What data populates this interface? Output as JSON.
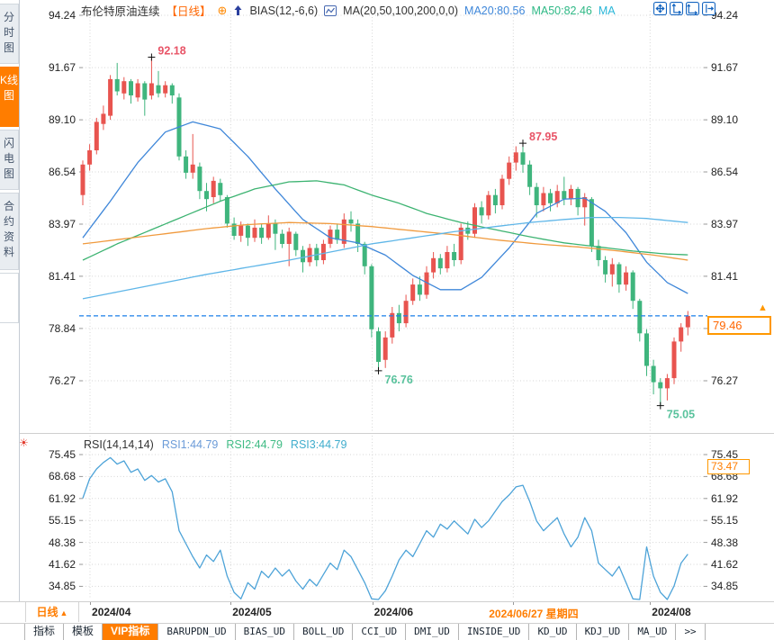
{
  "header": {
    "title": "布伦特原油连续",
    "legend_items": [
      {
        "type": "text",
        "text": "布伦特原油连续",
        "color": "#333333"
      },
      {
        "type": "text",
        "text": "【日线】",
        "color": "#ff6600"
      },
      {
        "type": "icon",
        "name": "plus-circle-icon",
        "glyph": "⊕",
        "color": "#ff8800"
      },
      {
        "type": "icon",
        "name": "signal-arrow-icon",
        "glyph": "",
        "color": "#2a3f9e"
      },
      {
        "type": "text",
        "text": "BIAS(12,-6,6)",
        "color": "#333333"
      },
      {
        "type": "icon",
        "name": "ma-chart-icon",
        "glyph": "",
        "color": "#4668b0"
      },
      {
        "type": "text",
        "text": "MA(20,50,100,200,0,0)",
        "color": "#333333"
      },
      {
        "type": "text",
        "text": "MA20:80.56",
        "color": "#3f87d9"
      },
      {
        "type": "text",
        "text": "MA50:82.46",
        "color": "#2eb885"
      },
      {
        "type": "text",
        "text": "MA",
        "color": "#29b6d8"
      }
    ],
    "corner_icons": [
      "pan-icon",
      "scale-y-axis-icon",
      "scale-x-axis-icon",
      "shift-right-icon"
    ]
  },
  "sidebar": {
    "tabs": [
      {
        "label": "分时图",
        "active": false
      },
      {
        "label": "K线图",
        "active": true
      },
      {
        "label": "闪电图",
        "active": false
      },
      {
        "label": "合约资料",
        "active": false
      }
    ]
  },
  "chart_data": {
    "type": "candlestick",
    "colors": {
      "up": "#e8544f",
      "down": "#3fb57d",
      "grid": "#d6d6d6",
      "axis_text": "#222222",
      "rsi_line": "#4da3d8",
      "price_line": "#1a7fe8",
      "accent_orange": "#ff7d00"
    },
    "main": {
      "yticks": [
        "94.24",
        "91.67",
        "89.10",
        "86.54",
        "83.97",
        "81.41",
        "78.84",
        "76.27"
      ],
      "xticks": [
        {
          "i": 1.05,
          "label": "2024/04"
        },
        {
          "i": 21.5,
          "label": "2024/05"
        },
        {
          "i": 42.1,
          "label": "2024/06"
        },
        {
          "i": 62.6,
          "label": "2024/06/27 星期四",
          "highlight": true,
          "dx": -27
        },
        {
          "i": 82.5,
          "label": "2024/08"
        }
      ],
      "candles": [
        [
          85.4,
          87.1,
          84.9,
          86.9
        ],
        [
          86.9,
          87.9,
          86.6,
          87.6
        ],
        [
          87.6,
          89.2,
          87.4,
          89.0
        ],
        [
          88.9,
          89.8,
          88.6,
          89.4
        ],
        [
          89.3,
          91.3,
          89.1,
          91.1
        ],
        [
          91.1,
          91.9,
          90.3,
          90.5
        ],
        [
          90.4,
          91.2,
          90.1,
          91.0
        ],
        [
          91.0,
          91.1,
          89.9,
          90.3
        ],
        [
          90.2,
          91.1,
          90.0,
          90.9
        ],
        [
          90.9,
          91.0,
          89.3,
          90.1
        ],
        [
          90.3,
          92.18,
          90.1,
          90.9
        ],
        [
          90.8,
          91.5,
          90.2,
          90.4
        ],
        [
          90.4,
          91.0,
          90.2,
          90.8
        ],
        [
          90.8,
          90.9,
          89.9,
          90.3
        ],
        [
          90.2,
          90.4,
          87.1,
          87.3
        ],
        [
          87.3,
          87.6,
          86.2,
          86.5
        ],
        [
          86.5,
          88.4,
          86.2,
          86.9
        ],
        [
          86.8,
          87.0,
          85.2,
          85.6
        ],
        [
          85.6,
          86.0,
          84.6,
          85.2
        ],
        [
          85.3,
          86.3,
          85.0,
          86.1
        ],
        [
          86.0,
          86.2,
          85.1,
          85.4
        ],
        [
          85.3,
          85.4,
          83.8,
          84.0
        ],
        [
          84.0,
          84.3,
          83.2,
          83.4
        ],
        [
          83.4,
          84.1,
          83.1,
          83.9
        ],
        [
          83.9,
          84.0,
          82.9,
          83.3
        ],
        [
          83.3,
          84.2,
          83.1,
          83.8
        ],
        [
          83.8,
          84.0,
          83.0,
          83.3
        ],
        [
          83.3,
          84.4,
          83.2,
          84.0
        ],
        [
          84.0,
          84.2,
          82.7,
          83.5
        ],
        [
          83.5,
          83.7,
          82.8,
          83.0
        ],
        [
          83.0,
          83.8,
          81.9,
          83.6
        ],
        [
          83.5,
          83.6,
          82.4,
          82.7
        ],
        [
          82.7,
          82.9,
          81.6,
          82.1
        ],
        [
          82.1,
          83.0,
          81.9,
          82.8
        ],
        [
          82.8,
          83.0,
          81.9,
          82.2
        ],
        [
          82.2,
          83.2,
          82.0,
          83.0
        ],
        [
          83.0,
          83.9,
          82.8,
          83.7
        ],
        [
          83.7,
          84.0,
          83.0,
          83.2
        ],
        [
          83.0,
          84.5,
          82.8,
          84.2
        ],
        [
          84.2,
          84.6,
          83.6,
          84.0
        ],
        [
          84.0,
          84.2,
          82.6,
          83.0
        ],
        [
          83.0,
          83.1,
          81.5,
          81.9
        ],
        [
          81.9,
          82.0,
          78.4,
          78.8
        ],
        [
          78.7,
          78.9,
          76.76,
          77.2
        ],
        [
          77.3,
          78.7,
          76.9,
          78.4
        ],
        [
          78.4,
          79.9,
          78.1,
          79.6
        ],
        [
          79.6,
          80.0,
          78.7,
          79.1
        ],
        [
          79.1,
          80.5,
          78.9,
          80.2
        ],
        [
          80.2,
          81.3,
          80.0,
          81.0
        ],
        [
          81.0,
          81.4,
          80.2,
          80.5
        ],
        [
          80.5,
          81.9,
          80.3,
          81.6
        ],
        [
          81.6,
          82.6,
          81.3,
          82.3
        ],
        [
          82.3,
          82.5,
          81.5,
          81.8
        ],
        [
          81.8,
          82.9,
          81.6,
          82.6
        ],
        [
          82.6,
          83.0,
          81.9,
          82.2
        ],
        [
          82.2,
          84.0,
          82.0,
          83.8
        ],
        [
          83.8,
          84.1,
          83.2,
          83.5
        ],
        [
          83.5,
          85.0,
          83.3,
          84.8
        ],
        [
          84.8,
          85.1,
          84.0,
          84.4
        ],
        [
          84.4,
          85.6,
          84.2,
          85.4
        ],
        [
          85.4,
          85.7,
          84.5,
          84.9
        ],
        [
          84.9,
          86.4,
          84.7,
          86.2
        ],
        [
          86.2,
          87.3,
          85.9,
          87.0
        ],
        [
          87.0,
          87.8,
          86.6,
          87.5
        ],
        [
          87.5,
          87.95,
          86.5,
          86.9
        ],
        [
          86.9,
          87.1,
          85.4,
          85.8
        ],
        [
          85.8,
          86.0,
          84.3,
          84.9
        ],
        [
          84.9,
          85.8,
          84.6,
          85.5
        ],
        [
          85.5,
          85.7,
          84.6,
          85.0
        ],
        [
          85.0,
          85.9,
          84.8,
          85.6
        ],
        [
          85.6,
          86.3,
          84.9,
          85.2
        ],
        [
          85.2,
          85.9,
          84.9,
          85.7
        ],
        [
          85.7,
          85.8,
          84.4,
          84.8
        ],
        [
          84.8,
          85.5,
          83.9,
          85.3
        ],
        [
          85.2,
          85.3,
          82.6,
          82.9
        ],
        [
          82.9,
          83.2,
          81.9,
          82.2
        ],
        [
          82.2,
          82.4,
          81.1,
          81.5
        ],
        [
          81.5,
          82.3,
          80.9,
          82.0
        ],
        [
          82.0,
          82.1,
          80.6,
          81.0
        ],
        [
          81.0,
          81.9,
          80.7,
          81.6
        ],
        [
          81.6,
          81.7,
          79.8,
          80.2
        ],
        [
          80.2,
          80.3,
          78.2,
          78.6
        ],
        [
          78.6,
          78.8,
          76.5,
          77.0
        ],
        [
          77.0,
          77.3,
          75.6,
          76.2
        ],
        [
          76.2,
          76.4,
          75.05,
          75.9
        ],
        [
          75.9,
          76.6,
          75.3,
          76.4
        ],
        [
          76.4,
          78.4,
          76.1,
          78.2
        ],
        [
          78.2,
          79.1,
          77.7,
          78.9
        ],
        [
          78.9,
          79.7,
          78.5,
          79.46
        ]
      ],
      "ma_lines": [
        {
          "name": "MA20",
          "color": "#3f87d9",
          "points": [
            [
              0,
              83.3
            ],
            [
              4,
              85.1
            ],
            [
              8,
              87.0
            ],
            [
              12,
              88.5
            ],
            [
              16,
              89.0
            ],
            [
              20,
              88.65
            ],
            [
              24,
              87.3
            ],
            [
              28,
              85.7
            ],
            [
              32,
              84.2
            ],
            [
              36,
              83.3
            ],
            [
              40,
              83.05
            ],
            [
              44,
              82.45
            ],
            [
              48,
              81.45
            ],
            [
              52,
              80.75
            ],
            [
              55,
              80.75
            ],
            [
              58,
              81.35
            ],
            [
              62,
              82.8
            ],
            [
              66,
              84.5
            ],
            [
              70,
              85.2
            ],
            [
              73,
              85.25
            ],
            [
              76,
              84.6
            ],
            [
              79,
              83.55
            ],
            [
              82,
              82.1
            ],
            [
              85,
              81.1
            ],
            [
              88,
              80.56
            ]
          ]
        },
        {
          "name": "MA50",
          "color": "#3cb371",
          "points": [
            [
              0,
              82.2
            ],
            [
              5,
              83.0
            ],
            [
              10,
              83.7
            ],
            [
              15,
              84.4
            ],
            [
              20,
              85.1
            ],
            [
              25,
              85.7
            ],
            [
              30,
              86.05
            ],
            [
              34,
              86.1
            ],
            [
              38,
              85.9
            ],
            [
              42,
              85.4
            ],
            [
              46,
              85.0
            ],
            [
              50,
              84.5
            ],
            [
              55,
              84.05
            ],
            [
              60,
              83.7
            ],
            [
              65,
              83.35
            ],
            [
              70,
              83.05
            ],
            [
              75,
              82.85
            ],
            [
              80,
              82.65
            ],
            [
              85,
              82.5
            ],
            [
              88,
              82.46
            ]
          ]
        },
        {
          "name": "MA100",
          "color": "#f09a3e",
          "points": [
            [
              0,
              83.0
            ],
            [
              6,
              83.25
            ],
            [
              12,
              83.5
            ],
            [
              18,
              83.75
            ],
            [
              24,
              83.95
            ],
            [
              30,
              84.05
            ],
            [
              36,
              84.0
            ],
            [
              42,
              83.85
            ],
            [
              48,
              83.65
            ],
            [
              54,
              83.45
            ],
            [
              60,
              83.2
            ],
            [
              66,
              83.0
            ],
            [
              72,
              82.85
            ],
            [
              78,
              82.65
            ],
            [
              83,
              82.45
            ],
            [
              88,
              82.2
            ]
          ]
        },
        {
          "name": "MA200",
          "color": "#5fb6e8",
          "points": [
            [
              0,
              80.3
            ],
            [
              6,
              80.7
            ],
            [
              12,
              81.1
            ],
            [
              18,
              81.5
            ],
            [
              24,
              81.85
            ],
            [
              30,
              82.2
            ],
            [
              36,
              82.6
            ],
            [
              42,
              83.0
            ],
            [
              48,
              83.3
            ],
            [
              54,
              83.6
            ],
            [
              60,
              83.85
            ],
            [
              65,
              84.05
            ],
            [
              70,
              84.2
            ],
            [
              74,
              84.3
            ],
            [
              78,
              84.3
            ],
            [
              82,
              84.25
            ],
            [
              88,
              84.05
            ]
          ]
        }
      ],
      "price_line": {
        "value": 79.46,
        "label": "79.46"
      },
      "annotations": [
        {
          "i": 10,
          "price": 92.18,
          "label": "92.18",
          "side": "high",
          "color": "#e85467"
        },
        {
          "i": 64,
          "price": 87.95,
          "label": "87.95",
          "side": "high",
          "color": "#e85467"
        },
        {
          "i": 43,
          "price": 76.76,
          "label": "76.76",
          "side": "low",
          "color": "#58c29c"
        },
        {
          "i": 84,
          "price": 75.05,
          "label": "75.05",
          "side": "low",
          "color": "#58c29c"
        }
      ]
    },
    "rsi": {
      "legend_items": [
        {
          "text": "RSI(14,14,14)",
          "color": "#333333"
        },
        {
          "text": "RSI1:44.79",
          "color": "#6b9bd8"
        },
        {
          "text": "RSI2:44.79",
          "color": "#3fbb84"
        },
        {
          "text": "RSI3:44.79",
          "color": "#3eaccc"
        }
      ],
      "yticks": [
        "75.45",
        "68.68",
        "61.92",
        "55.15",
        "48.38",
        "41.62",
        "34.85"
      ],
      "values": [
        62,
        68,
        71,
        73,
        74.5,
        72.5,
        73.5,
        70,
        71,
        67.5,
        69,
        67,
        68,
        64,
        52,
        48,
        44,
        40.5,
        44.5,
        42.5,
        46,
        38,
        33,
        31,
        36,
        34,
        39.5,
        37.5,
        40.5,
        38,
        40,
        36.5,
        34,
        37,
        35,
        38.5,
        42,
        40,
        46,
        44,
        40,
        36,
        31,
        30,
        33.5,
        38,
        43,
        46,
        44,
        48,
        52,
        50,
        54,
        52.5,
        55,
        53,
        51,
        55.5,
        53,
        55,
        58,
        61,
        63,
        65.5,
        66,
        61,
        55,
        52,
        54,
        56,
        51,
        47,
        50,
        56,
        52,
        42,
        40,
        38,
        41,
        36,
        31,
        29.5,
        47,
        38,
        33,
        30.5,
        35,
        42,
        44.79
      ],
      "marker": {
        "value": 73.47,
        "label": "73.47"
      }
    }
  },
  "footer": {
    "period_label": "日线",
    "toolbar": {
      "items": [
        {
          "label": "指标",
          "cjk": true
        },
        {
          "label": "模板",
          "cjk": true
        },
        {
          "label": "VIP指标",
          "cjk": true,
          "active": true
        },
        {
          "label": "BARUPDN_UD"
        },
        {
          "label": "BIAS_UD"
        },
        {
          "label": "BOLL_UD"
        },
        {
          "label": "CCI_UD"
        },
        {
          "label": "DMI_UD"
        },
        {
          "label": "INSIDE_UD"
        },
        {
          "label": "KD_UD"
        },
        {
          "label": "KDJ_UD"
        },
        {
          "label": "MA_UD"
        },
        {
          "label": ">>"
        }
      ]
    }
  }
}
